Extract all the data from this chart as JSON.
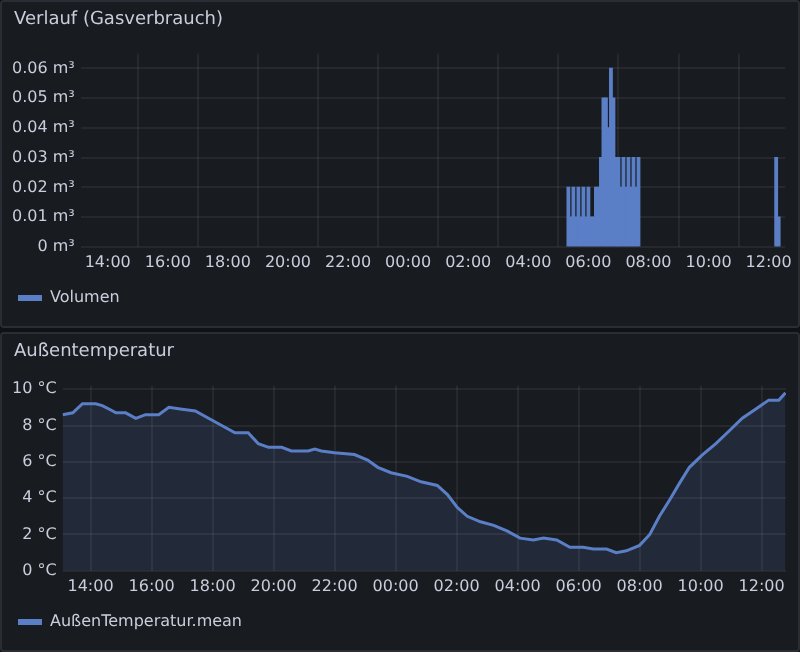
{
  "chart_data": [
    {
      "type": "bar",
      "title": "Verlauf (Gasverbrauch)",
      "legend": "bottom left",
      "grid": true,
      "xlim": [
        "2000-01-01T13:06",
        "2000-01-02T12:33"
      ],
      "xticks": [
        {
          "value": "2000-01-01T14:00",
          "label": "14:00"
        },
        {
          "value": "2000-01-01T16:00",
          "label": "16:00"
        },
        {
          "value": "2000-01-01T18:00",
          "label": "18:00"
        },
        {
          "value": "2000-01-01T20:00",
          "label": "20:00"
        },
        {
          "value": "2000-01-01T22:00",
          "label": "22:00"
        },
        {
          "value": "2000-01-02T00:00",
          "label": "00:00"
        },
        {
          "value": "2000-01-02T02:00",
          "label": "02:00"
        },
        {
          "value": "2000-01-02T04:00",
          "label": "04:00"
        },
        {
          "value": "2000-01-02T06:00",
          "label": "06:00"
        },
        {
          "value": "2000-01-02T08:00",
          "label": "08:00"
        },
        {
          "value": "2000-01-02T10:00",
          "label": "10:00"
        },
        {
          "value": "2000-01-02T12:00",
          "label": "12:00"
        }
      ],
      "ylim": [
        0,
        0.065
      ],
      "yticks": [
        {
          "value": 0,
          "label": "0 m³"
        },
        {
          "value": 0.01,
          "label": "0.01 m³"
        },
        {
          "value": 0.02,
          "label": "0.02 m³"
        },
        {
          "value": 0.03,
          "label": "0.03 m³"
        },
        {
          "value": 0.04,
          "label": "0.04 m³"
        },
        {
          "value": 0.05,
          "label": "0.05 m³"
        },
        {
          "value": 0.06,
          "label": "0.06 m³"
        }
      ],
      "series": [
        {
          "name": "Volumen",
          "color": "#5b7fc7",
          "x": [
            "2000-01-02T05:20",
            "2000-01-02T05:25",
            "2000-01-02T05:30",
            "2000-01-02T05:35",
            "2000-01-02T05:40",
            "2000-01-02T05:45",
            "2000-01-02T05:50",
            "2000-01-02T05:55",
            "2000-01-02T06:00",
            "2000-01-02T06:05",
            "2000-01-02T06:10",
            "2000-01-02T06:15",
            "2000-01-02T06:20",
            "2000-01-02T06:25",
            "2000-01-02T06:30",
            "2000-01-02T06:35",
            "2000-01-02T06:40",
            "2000-01-02T06:45",
            "2000-01-02T06:50",
            "2000-01-02T06:55",
            "2000-01-02T07:00",
            "2000-01-02T07:05",
            "2000-01-02T07:10",
            "2000-01-02T07:15",
            "2000-01-02T07:20",
            "2000-01-02T07:25",
            "2000-01-02T07:30",
            "2000-01-02T07:35",
            "2000-01-02T07:40",
            "2000-01-02T12:15",
            "2000-01-02T12:20"
          ],
          "values": [
            0.02,
            0.01,
            0.02,
            0.01,
            0.02,
            0.01,
            0.02,
            0.01,
            0.02,
            0.01,
            0.01,
            0.02,
            0.02,
            0.03,
            0.05,
            0.05,
            0.04,
            0.06,
            0.05,
            0.03,
            0.03,
            0.02,
            0.03,
            0.02,
            0.03,
            0.02,
            0.03,
            0.02,
            0.03,
            0.03,
            0.01
          ]
        }
      ]
    },
    {
      "type": "area",
      "title": "Außentemperatur",
      "legend": "bottom left",
      "grid": true,
      "xlim": [
        "2000-01-01T13:05",
        "2000-01-02T12:48"
      ],
      "xticks": [
        {
          "value": "2000-01-01T14:00",
          "label": "14:00"
        },
        {
          "value": "2000-01-01T16:00",
          "label": "16:00"
        },
        {
          "value": "2000-01-01T18:00",
          "label": "18:00"
        },
        {
          "value": "2000-01-01T20:00",
          "label": "20:00"
        },
        {
          "value": "2000-01-01T22:00",
          "label": "22:00"
        },
        {
          "value": "2000-01-02T00:00",
          "label": "00:00"
        },
        {
          "value": "2000-01-02T02:00",
          "label": "02:00"
        },
        {
          "value": "2000-01-02T04:00",
          "label": "04:00"
        },
        {
          "value": "2000-01-02T06:00",
          "label": "06:00"
        },
        {
          "value": "2000-01-02T08:00",
          "label": "08:00"
        },
        {
          "value": "2000-01-02T10:00",
          "label": "10:00"
        },
        {
          "value": "2000-01-02T12:00",
          "label": "12:00"
        }
      ],
      "ylim": [
        0,
        10.2
      ],
      "yticks": [
        {
          "value": 0,
          "label": "0 °C"
        },
        {
          "value": 2,
          "label": "2 °C"
        },
        {
          "value": 4,
          "label": "4 °C"
        },
        {
          "value": 6,
          "label": "6 °C"
        },
        {
          "value": 8,
          "label": "8 °C"
        },
        {
          "value": 10,
          "label": "10 °C"
        }
      ],
      "series": [
        {
          "name": "AußenTemperatur.mean",
          "color": "#5b7fc7",
          "x": [
            "2000-01-01T13:05",
            "2000-01-01T13:25",
            "2000-01-01T13:44",
            "2000-01-01T14:10",
            "2000-01-01T14:23",
            "2000-01-01T14:37",
            "2000-01-01T14:50",
            "2000-01-01T15:09",
            "2000-01-01T15:29",
            "2000-01-01T15:48",
            "2000-01-01T16:14",
            "2000-01-01T16:34",
            "2000-01-01T17:00",
            "2000-01-01T17:26",
            "2000-01-01T17:52",
            "2000-01-01T18:18",
            "2000-01-01T18:44",
            "2000-01-01T19:10",
            "2000-01-01T19:30",
            "2000-01-01T19:50",
            "2000-01-01T20:16",
            "2000-01-01T20:35",
            "2000-01-01T21:08",
            "2000-01-01T21:21",
            "2000-01-01T21:34",
            "2000-01-01T22:00",
            "2000-01-01T22:39",
            "2000-01-01T23:05",
            "2000-01-01T23:25",
            "2000-01-01T23:51",
            "2000-01-02T00:23",
            "2000-01-02T00:50",
            "2000-01-02T01:22",
            "2000-01-02T01:42",
            "2000-01-02T02:01",
            "2000-01-02T02:21",
            "2000-01-02T02:47",
            "2000-01-02T03:13",
            "2000-01-02T03:39",
            "2000-01-02T04:05",
            "2000-01-02T04:31",
            "2000-01-02T04:51",
            "2000-01-02T05:17",
            "2000-01-02T05:43",
            "2000-01-02T06:09",
            "2000-01-02T06:29",
            "2000-01-02T06:55",
            "2000-01-02T07:14",
            "2000-01-02T07:34",
            "2000-01-02T08:00",
            "2000-01-02T08:20",
            "2000-01-02T08:39",
            "2000-01-02T08:59",
            "2000-01-02T09:18",
            "2000-01-02T09:38",
            "2000-01-02T10:04",
            "2000-01-02T10:30",
            "2000-01-02T10:56",
            "2000-01-02T11:22",
            "2000-01-02T11:48",
            "2000-01-02T12:14",
            "2000-01-02T12:34",
            "2000-01-02T12:47"
          ],
          "values": [
            8.6,
            8.7,
            9.2,
            9.2,
            9.1,
            8.9,
            8.7,
            8.7,
            8.4,
            8.6,
            8.6,
            9,
            8.9,
            8.8,
            8.4,
            8,
            7.6,
            7.6,
            7,
            6.8,
            6.8,
            6.6,
            6.6,
            6.7,
            6.6,
            6.5,
            6.4,
            6.1,
            5.7,
            5.4,
            5.2,
            4.9,
            4.7,
            4.2,
            3.5,
            3,
            2.7,
            2.5,
            2.2,
            1.8,
            1.7,
            1.8,
            1.7,
            1.3,
            1.3,
            1.2,
            1.2,
            1,
            1.1,
            1.4,
            2,
            3,
            3.9,
            4.8,
            5.7,
            6.4,
            7,
            7.7,
            8.4,
            8.9,
            9.4,
            9.4,
            9.8
          ]
        }
      ]
    }
  ]
}
